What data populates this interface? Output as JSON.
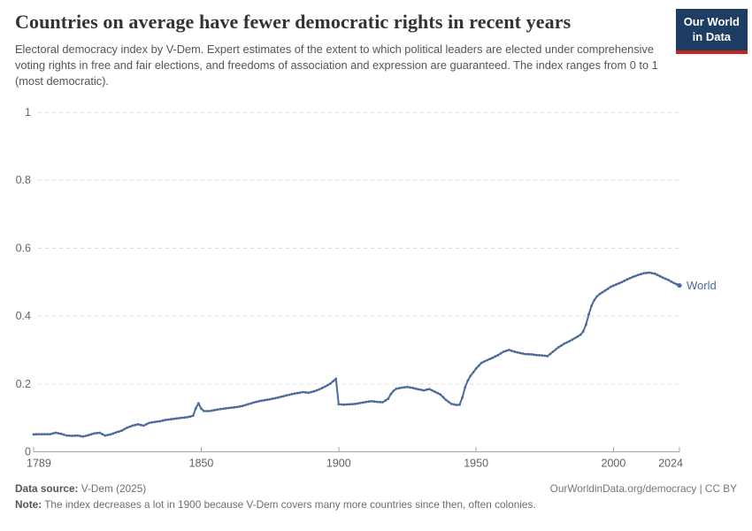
{
  "header": {
    "title": "Countries on average have fewer democratic rights in recent years",
    "subtitle": "Electoral democracy index by V-Dem. Expert estimates of the extent to which political leaders are elected under comprehensive voting rights in free and fair elections, and freedoms of association and expression are guaranteed. The index ranges from 0 to 1 (most democratic).",
    "logo": {
      "line1": "Our World",
      "line2": "in Data",
      "bg_color": "#1d3d63",
      "accent_color": "#c0271d"
    }
  },
  "chart_data": {
    "type": "line",
    "title": "Countries on average have fewer democratic rights in recent years",
    "xlabel": "",
    "ylabel": "Electoral democracy index",
    "xlim": [
      1789,
      2024
    ],
    "ylim": [
      0,
      1
    ],
    "x_ticks": [
      1789,
      1850,
      1900,
      1950,
      2000,
      2024
    ],
    "y_ticks": [
      0,
      0.2,
      0.4,
      0.6,
      0.8,
      1
    ],
    "y_tick_labels": [
      "0",
      "0.2",
      "0.4",
      "0.6",
      "0.8",
      "1"
    ],
    "grid": "horizontal-dashed",
    "gridline_color": "#dcdcdc",
    "axis_color": "#a3a3a3",
    "tick_label_color": "#666666",
    "legend_position": "end-of-line-label",
    "series": [
      {
        "name": "World",
        "color": "#4C6A9C",
        "points": [
          [
            1789,
            0.051
          ],
          [
            1791,
            0.052
          ],
          [
            1793,
            0.052
          ],
          [
            1795,
            0.052
          ],
          [
            1797,
            0.056
          ],
          [
            1799,
            0.053
          ],
          [
            1801,
            0.048
          ],
          [
            1803,
            0.047
          ],
          [
            1805,
            0.048
          ],
          [
            1807,
            0.045
          ],
          [
            1809,
            0.049
          ],
          [
            1811,
            0.054
          ],
          [
            1813,
            0.056
          ],
          [
            1815,
            0.048
          ],
          [
            1817,
            0.051
          ],
          [
            1819,
            0.057
          ],
          [
            1821,
            0.062
          ],
          [
            1823,
            0.071
          ],
          [
            1825,
            0.077
          ],
          [
            1827,
            0.081
          ],
          [
            1829,
            0.077
          ],
          [
            1831,
            0.085
          ],
          [
            1833,
            0.088
          ],
          [
            1835,
            0.09
          ],
          [
            1837,
            0.094
          ],
          [
            1839,
            0.096
          ],
          [
            1841,
            0.098
          ],
          [
            1843,
            0.1
          ],
          [
            1845,
            0.102
          ],
          [
            1847,
            0.106
          ],
          [
            1848,
            0.128
          ],
          [
            1849,
            0.143
          ],
          [
            1850,
            0.127
          ],
          [
            1851,
            0.12
          ],
          [
            1853,
            0.12
          ],
          [
            1855,
            0.123
          ],
          [
            1857,
            0.126
          ],
          [
            1859,
            0.128
          ],
          [
            1861,
            0.13
          ],
          [
            1863,
            0.132
          ],
          [
            1865,
            0.135
          ],
          [
            1867,
            0.14
          ],
          [
            1869,
            0.145
          ],
          [
            1871,
            0.149
          ],
          [
            1873,
            0.152
          ],
          [
            1875,
            0.155
          ],
          [
            1877,
            0.158
          ],
          [
            1879,
            0.162
          ],
          [
            1881,
            0.166
          ],
          [
            1883,
            0.17
          ],
          [
            1885,
            0.173
          ],
          [
            1887,
            0.176
          ],
          [
            1889,
            0.174
          ],
          [
            1891,
            0.178
          ],
          [
            1893,
            0.184
          ],
          [
            1895,
            0.192
          ],
          [
            1897,
            0.201
          ],
          [
            1899,
            0.215
          ],
          [
            1900,
            0.14
          ],
          [
            1902,
            0.139
          ],
          [
            1904,
            0.14
          ],
          [
            1906,
            0.141
          ],
          [
            1908,
            0.144
          ],
          [
            1910,
            0.147
          ],
          [
            1912,
            0.149
          ],
          [
            1914,
            0.147
          ],
          [
            1916,
            0.146
          ],
          [
            1918,
            0.156
          ],
          [
            1919,
            0.17
          ],
          [
            1920,
            0.18
          ],
          [
            1921,
            0.186
          ],
          [
            1923,
            0.189
          ],
          [
            1925,
            0.191
          ],
          [
            1927,
            0.188
          ],
          [
            1929,
            0.184
          ],
          [
            1931,
            0.181
          ],
          [
            1933,
            0.185
          ],
          [
            1935,
            0.177
          ],
          [
            1937,
            0.169
          ],
          [
            1939,
            0.153
          ],
          [
            1941,
            0.141
          ],
          [
            1943,
            0.138
          ],
          [
            1944,
            0.139
          ],
          [
            1945,
            0.16
          ],
          [
            1946,
            0.19
          ],
          [
            1947,
            0.21
          ],
          [
            1948,
            0.224
          ],
          [
            1950,
            0.245
          ],
          [
            1952,
            0.262
          ],
          [
            1954,
            0.27
          ],
          [
            1956,
            0.277
          ],
          [
            1958,
            0.285
          ],
          [
            1960,
            0.295
          ],
          [
            1962,
            0.3
          ],
          [
            1964,
            0.295
          ],
          [
            1966,
            0.291
          ],
          [
            1968,
            0.288
          ],
          [
            1970,
            0.287
          ],
          [
            1972,
            0.285
          ],
          [
            1974,
            0.284
          ],
          [
            1976,
            0.282
          ],
          [
            1978,
            0.295
          ],
          [
            1980,
            0.308
          ],
          [
            1982,
            0.318
          ],
          [
            1984,
            0.326
          ],
          [
            1986,
            0.335
          ],
          [
            1988,
            0.345
          ],
          [
            1989,
            0.355
          ],
          [
            1990,
            0.375
          ],
          [
            1991,
            0.405
          ],
          [
            1992,
            0.43
          ],
          [
            1993,
            0.447
          ],
          [
            1994,
            0.458
          ],
          [
            1995,
            0.465
          ],
          [
            1997,
            0.475
          ],
          [
            1999,
            0.486
          ],
          [
            2001,
            0.493
          ],
          [
            2003,
            0.5
          ],
          [
            2005,
            0.508
          ],
          [
            2007,
            0.515
          ],
          [
            2009,
            0.521
          ],
          [
            2011,
            0.526
          ],
          [
            2013,
            0.528
          ],
          [
            2015,
            0.525
          ],
          [
            2016,
            0.521
          ],
          [
            2018,
            0.513
          ],
          [
            2020,
            0.506
          ],
          [
            2022,
            0.497
          ],
          [
            2024,
            0.49
          ]
        ]
      }
    ],
    "end_label": "World"
  },
  "footer": {
    "datasource_label": "Data source:",
    "datasource_value": " V-Dem (2025)",
    "link": "OurWorldinData.org/democracy | CC BY",
    "note_label": "Note:",
    "note_value": " The index decreases a lot in 1900 because V-Dem covers many more countries since then, often colonies."
  }
}
